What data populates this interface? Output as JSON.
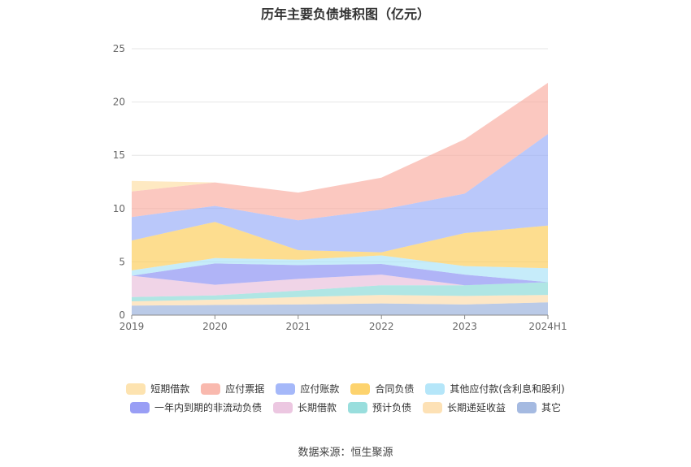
{
  "chart_data": {
    "type": "area",
    "stacked": true,
    "title": "历年主要负债堆积图（亿元）",
    "categories": [
      "2019",
      "2020",
      "2021",
      "2022",
      "2023",
      "2024H1"
    ],
    "ylim": [
      0,
      25
    ],
    "yticks": [
      0,
      5,
      10,
      15,
      20,
      25
    ],
    "grid": true,
    "legend_position": "bottom",
    "series": [
      {
        "name": "其它",
        "color": "#8fa9d9",
        "values": [
          0.9,
          0.95,
          1.0,
          1.1,
          1.0,
          1.2
        ]
      },
      {
        "name": "长期递延收益",
        "color": "#fcd9a3",
        "values": [
          0.4,
          0.5,
          0.7,
          0.8,
          0.8,
          0.7
        ]
      },
      {
        "name": "预计负债",
        "color": "#7fd6d4",
        "values": [
          0.4,
          0.4,
          0.6,
          0.9,
          1.0,
          1.2
        ]
      },
      {
        "name": "长期借款",
        "color": "#e7b9d9",
        "values": [
          2.0,
          1.0,
          1.1,
          1.0,
          0.0,
          0.0
        ]
      },
      {
        "name": "一年内到期的非流动负债",
        "color": "#7f86f2",
        "values": [
          0.0,
          2.0,
          1.3,
          1.0,
          1.0,
          0.0
        ]
      },
      {
        "name": "其他应付款(含利息和股利)",
        "color": "#a3e0f7",
        "values": [
          0.5,
          0.5,
          0.5,
          0.8,
          0.8,
          1.3
        ]
      },
      {
        "name": "合同负债",
        "color": "#fcc84a",
        "values": [
          2.8,
          3.4,
          0.9,
          0.3,
          3.1,
          4.0
        ]
      },
      {
        "name": "应付账款",
        "color": "#8fa6f7",
        "values": [
          2.2,
          1.5,
          2.8,
          4.0,
          3.7,
          8.6
        ]
      },
      {
        "name": "应付票据",
        "color": "#f8a79a",
        "values": [
          2.4,
          2.2,
          2.6,
          3.0,
          5.1,
          4.8
        ]
      },
      {
        "name": "短期借款",
        "color": "#fddc9c",
        "values": [
          1.0,
          0.0,
          0.0,
          0.0,
          0.0,
          0.0
        ]
      }
    ]
  },
  "legend_rows": [
    [
      "短期借款",
      "应付票据",
      "应付账款",
      "合同负债",
      "其他应付款(含利息和股利)"
    ],
    [
      "一年内到期的非流动负债",
      "长期借款",
      "预计负债",
      "长期递延收益",
      "其它"
    ]
  ],
  "source": "数据来源：恒生聚源"
}
